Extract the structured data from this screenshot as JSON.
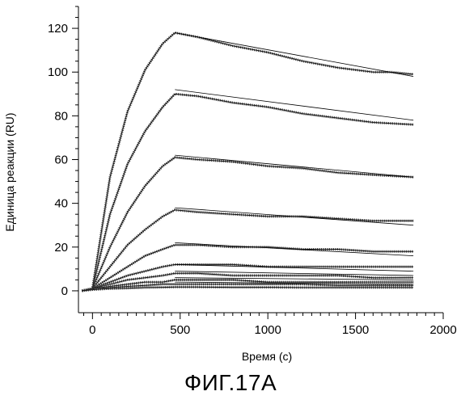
{
  "caption": "ФИГ.17А",
  "chart_data": {
    "type": "line",
    "title": "",
    "xlabel": "Время (с)",
    "ylabel": "Единица реакции (RU)",
    "xlim": [
      -80,
      2000
    ],
    "ylim": [
      -10,
      130
    ],
    "xticks": [
      0,
      500,
      1000,
      1500,
      2000
    ],
    "yticks": [
      0,
      20,
      40,
      60,
      80,
      100,
      120
    ],
    "grid": false,
    "legend": "none",
    "colors": {
      "measured": "#404040",
      "fit": "#000000"
    },
    "association_end_s": 470,
    "series": [
      {
        "values": [
          [
            -60,
            0
          ],
          [
            0,
            1
          ],
          [
            100,
            52
          ],
          [
            200,
            82
          ],
          [
            300,
            101
          ],
          [
            400,
            113
          ],
          [
            470,
            118
          ],
          [
            600,
            116
          ],
          [
            800,
            112
          ],
          [
            1000,
            109
          ],
          [
            1200,
            105
          ],
          [
            1400,
            102
          ],
          [
            1600,
            100
          ],
          [
            1700,
            100
          ],
          [
            1830,
            99
          ]
        ]
      },
      {
        "values": [
          [
            -60,
            0
          ],
          [
            0,
            1
          ],
          [
            100,
            35
          ],
          [
            200,
            58
          ],
          [
            300,
            73
          ],
          [
            400,
            84
          ],
          [
            470,
            90
          ],
          [
            600,
            89
          ],
          [
            800,
            86
          ],
          [
            1000,
            84
          ],
          [
            1200,
            81
          ],
          [
            1400,
            79
          ],
          [
            1600,
            77
          ],
          [
            1830,
            76
          ]
        ]
      },
      {
        "values": [
          [
            -60,
            0
          ],
          [
            0,
            1
          ],
          [
            100,
            20
          ],
          [
            200,
            36
          ],
          [
            300,
            48
          ],
          [
            400,
            57
          ],
          [
            470,
            61
          ],
          [
            600,
            60
          ],
          [
            800,
            59
          ],
          [
            1000,
            57
          ],
          [
            1200,
            56
          ],
          [
            1400,
            54
          ],
          [
            1600,
            53
          ],
          [
            1830,
            52
          ]
        ]
      },
      {
        "values": [
          [
            -60,
            0
          ],
          [
            0,
            1
          ],
          [
            100,
            11
          ],
          [
            200,
            21
          ],
          [
            300,
            28
          ],
          [
            400,
            34
          ],
          [
            470,
            37
          ],
          [
            600,
            36
          ],
          [
            800,
            35
          ],
          [
            1000,
            34
          ],
          [
            1200,
            34
          ],
          [
            1400,
            33
          ],
          [
            1600,
            32
          ],
          [
            1830,
            32
          ]
        ]
      },
      {
        "values": [
          [
            -60,
            0
          ],
          [
            0,
            1
          ],
          [
            100,
            6
          ],
          [
            200,
            11
          ],
          [
            300,
            16
          ],
          [
            400,
            19
          ],
          [
            470,
            21
          ],
          [
            600,
            21
          ],
          [
            800,
            20
          ],
          [
            1000,
            20
          ],
          [
            1200,
            19
          ],
          [
            1400,
            19
          ],
          [
            1600,
            18
          ],
          [
            1830,
            18
          ]
        ]
      },
      {
        "values": [
          [
            -60,
            0
          ],
          [
            0,
            1
          ],
          [
            100,
            4
          ],
          [
            200,
            7
          ],
          [
            300,
            9
          ],
          [
            400,
            11
          ],
          [
            470,
            12
          ],
          [
            600,
            12
          ],
          [
            800,
            12
          ],
          [
            1000,
            11
          ],
          [
            1200,
            11
          ],
          [
            1400,
            11
          ],
          [
            1600,
            11
          ],
          [
            1830,
            11
          ]
        ]
      },
      {
        "values": [
          [
            -60,
            0
          ],
          [
            0,
            1
          ],
          [
            100,
            3
          ],
          [
            200,
            5
          ],
          [
            300,
            6
          ],
          [
            400,
            7
          ],
          [
            470,
            8
          ],
          [
            600,
            8
          ],
          [
            800,
            7
          ],
          [
            1000,
            7
          ],
          [
            1200,
            7
          ],
          [
            1400,
            7
          ],
          [
            1600,
            6
          ],
          [
            1830,
            6
          ]
        ]
      },
      {
        "values": [
          [
            -60,
            0
          ],
          [
            0,
            1
          ],
          [
            100,
            2
          ],
          [
            200,
            3
          ],
          [
            300,
            4
          ],
          [
            400,
            4
          ],
          [
            470,
            5
          ],
          [
            600,
            5
          ],
          [
            800,
            5
          ],
          [
            1000,
            4
          ],
          [
            1200,
            4
          ],
          [
            1400,
            4
          ],
          [
            1600,
            4
          ],
          [
            1830,
            4
          ]
        ]
      },
      {
        "values": [
          [
            -60,
            0
          ],
          [
            0,
            1
          ],
          [
            100,
            1.5
          ],
          [
            200,
            2
          ],
          [
            300,
            2.5
          ],
          [
            400,
            3
          ],
          [
            470,
            3
          ],
          [
            600,
            3
          ],
          [
            800,
            3
          ],
          [
            1000,
            3
          ],
          [
            1200,
            3
          ],
          [
            1400,
            2.5
          ],
          [
            1600,
            2.5
          ],
          [
            1830,
            2.5
          ]
        ]
      },
      {
        "values": [
          [
            -60,
            0
          ],
          [
            0,
            0.5
          ],
          [
            100,
            1
          ],
          [
            200,
            1.2
          ],
          [
            300,
            1.5
          ],
          [
            400,
            1.6
          ],
          [
            470,
            1.7
          ],
          [
            600,
            1.7
          ],
          [
            800,
            1.6
          ],
          [
            1000,
            1.6
          ],
          [
            1200,
            1.5
          ],
          [
            1400,
            1.5
          ],
          [
            1600,
            1.5
          ],
          [
            1830,
            1.5
          ]
        ]
      }
    ],
    "fits": [
      {
        "values": [
          [
            470,
            118
          ],
          [
            1830,
            98
          ]
        ]
      },
      {
        "values": [
          [
            470,
            92
          ],
          [
            1830,
            78
          ]
        ]
      },
      {
        "values": [
          [
            470,
            62
          ],
          [
            1830,
            52
          ]
        ]
      },
      {
        "values": [
          [
            470,
            38
          ],
          [
            1830,
            30
          ]
        ]
      },
      {
        "values": [
          [
            470,
            22
          ],
          [
            1830,
            16
          ]
        ]
      },
      {
        "values": [
          [
            470,
            12
          ],
          [
            1830,
            9
          ]
        ]
      },
      {
        "values": [
          [
            470,
            9
          ],
          [
            1830,
            7
          ]
        ]
      },
      {
        "values": [
          [
            470,
            6
          ],
          [
            1830,
            5
          ]
        ]
      },
      {
        "values": [
          [
            470,
            4
          ],
          [
            1830,
            3
          ]
        ]
      }
    ]
  }
}
